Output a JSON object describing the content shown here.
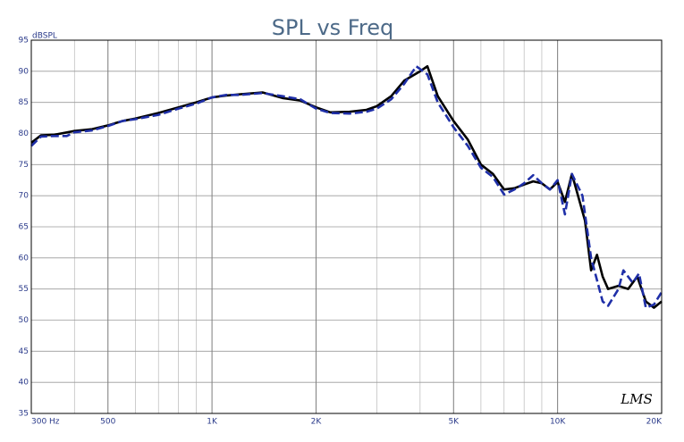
{
  "chart_data": {
    "type": "line",
    "title": "SPL vs Freq",
    "y_label": "dBSPL",
    "watermark": "LMS",
    "x_log": true,
    "grid": true,
    "xlim": [
      300,
      20000
    ],
    "ylim": [
      35,
      95
    ],
    "xticks": [
      {
        "value": 300,
        "label": "300 Hz"
      },
      500,
      {
        "value": 1000,
        "label": "1K"
      },
      {
        "value": 2000,
        "label": "2K"
      },
      {
        "value": 5000,
        "label": "5K"
      },
      {
        "value": 10000,
        "label": "10K"
      },
      {
        "value": 20000,
        "label": "20K"
      }
    ],
    "yticks": [
      35,
      40,
      45,
      50,
      55,
      60,
      65,
      70,
      75,
      80,
      85,
      90,
      95
    ],
    "series": [
      {
        "color": "#000000",
        "dash": false,
        "x": [
          300,
          320,
          350,
          400,
          450,
          500,
          550,
          600,
          700,
          800,
          900,
          1000,
          1100,
          1200,
          1400,
          1600,
          1800,
          2000,
          2200,
          2500,
          2800,
          3000,
          3300,
          3600,
          4000,
          4200,
          4500,
          5000,
          5500,
          6000,
          6500,
          7000,
          7500,
          8000,
          8500,
          9000,
          9500,
          10000,
          10500,
          11000,
          12000,
          12500,
          13000,
          13500,
          14000,
          15000,
          16000,
          17000,
          18000,
          19000,
          20000
        ],
        "values": [
          78.5,
          79.7,
          79.8,
          80.4,
          80.7,
          81.3,
          82,
          82.4,
          83.3,
          84.2,
          85,
          85.8,
          86.1,
          86.3,
          86.6,
          85.7,
          85.3,
          84.2,
          83.4,
          83.5,
          83.8,
          84.4,
          86,
          88.5,
          90,
          90.8,
          86,
          82,
          79,
          75,
          73.5,
          71,
          71.2,
          71.8,
          72.3,
          72,
          71,
          72.2,
          69,
          73.5,
          66,
          58,
          60.5,
          57,
          55,
          55.5,
          55,
          57,
          53,
          52,
          53
        ]
      },
      {
        "color": "#1f2fa8",
        "dash": true,
        "x": [
          300,
          320,
          350,
          380,
          400,
          450,
          500,
          550,
          600,
          700,
          800,
          900,
          1000,
          1100,
          1200,
          1400,
          1600,
          1800,
          2000,
          2200,
          2500,
          2800,
          3000,
          3300,
          3600,
          3900,
          4200,
          4500,
          5000,
          5500,
          6000,
          6500,
          7000,
          7500,
          8000,
          8500,
          9000,
          9500,
          10000,
          10500,
          11000,
          11800,
          12500,
          13500,
          14000,
          15000,
          15500,
          16500,
          17200,
          18000,
          19000,
          20000
        ],
        "values": [
          78,
          79.5,
          79.6,
          79.6,
          80.2,
          80.5,
          81.2,
          82,
          82.3,
          83,
          84,
          84.8,
          85.8,
          86.2,
          86.2,
          86.5,
          86,
          85.5,
          84,
          83.3,
          83.2,
          83.5,
          84,
          85.5,
          88,
          90.8,
          89.5,
          85,
          81,
          78,
          74.5,
          73,
          70.2,
          71,
          72,
          73.3,
          72,
          71,
          72.5,
          67,
          73.5,
          70,
          60,
          53,
          52.3,
          55,
          58,
          56,
          57.5,
          52,
          52.5,
          54.5
        ]
      }
    ]
  }
}
